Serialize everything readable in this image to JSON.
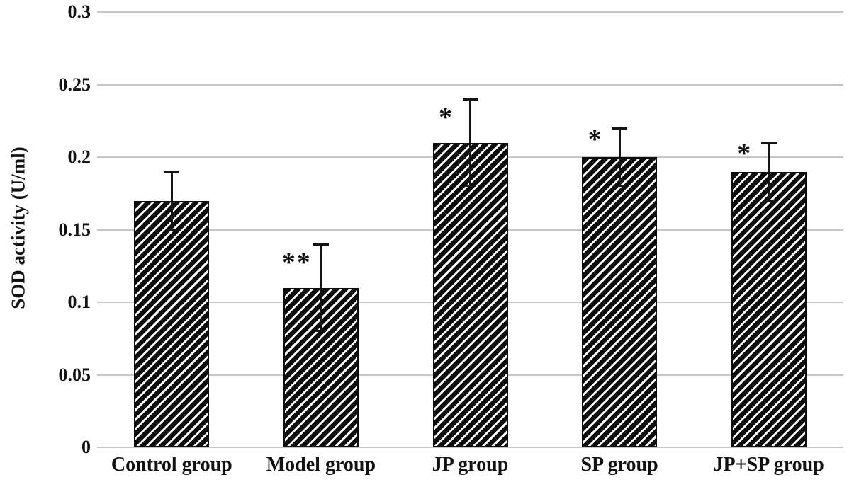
{
  "chart_data": {
    "type": "bar",
    "title": "",
    "xlabel": "",
    "ylabel": "SOD activity (U/ml)",
    "ylim": [
      0,
      0.3
    ],
    "ytick_values": [
      0,
      0.05,
      0.1,
      0.15,
      0.2,
      0.25,
      0.3
    ],
    "ytick_labels": [
      "0",
      "0.05",
      "0.1",
      "0.15",
      "0.2",
      "0.25",
      "0.3"
    ],
    "grid": true,
    "legend_position": "none",
    "categories": [
      "Control group",
      "Model group",
      "JP group",
      "SP group",
      "JP+SP group"
    ],
    "values": [
      0.17,
      0.11,
      0.21,
      0.2,
      0.19
    ],
    "error_plus": [
      0.02,
      0.03,
      0.03,
      0.02,
      0.02
    ],
    "error_minus": [
      0.02,
      0.03,
      0.03,
      0.02,
      0.02
    ],
    "significance_markers": [
      "",
      "**",
      "*",
      "*",
      "*"
    ],
    "bar_style": {
      "fill": "diagonal-hatch",
      "hatch_direction": "forward-slash",
      "bar_color": "#0d0d0d",
      "hatch_gap_color": "#ffffff"
    },
    "colors": {
      "bar": "#0d0d0d",
      "gridline": "#c6c6c6",
      "background": "#ffffff",
      "text": "#121212"
    }
  }
}
